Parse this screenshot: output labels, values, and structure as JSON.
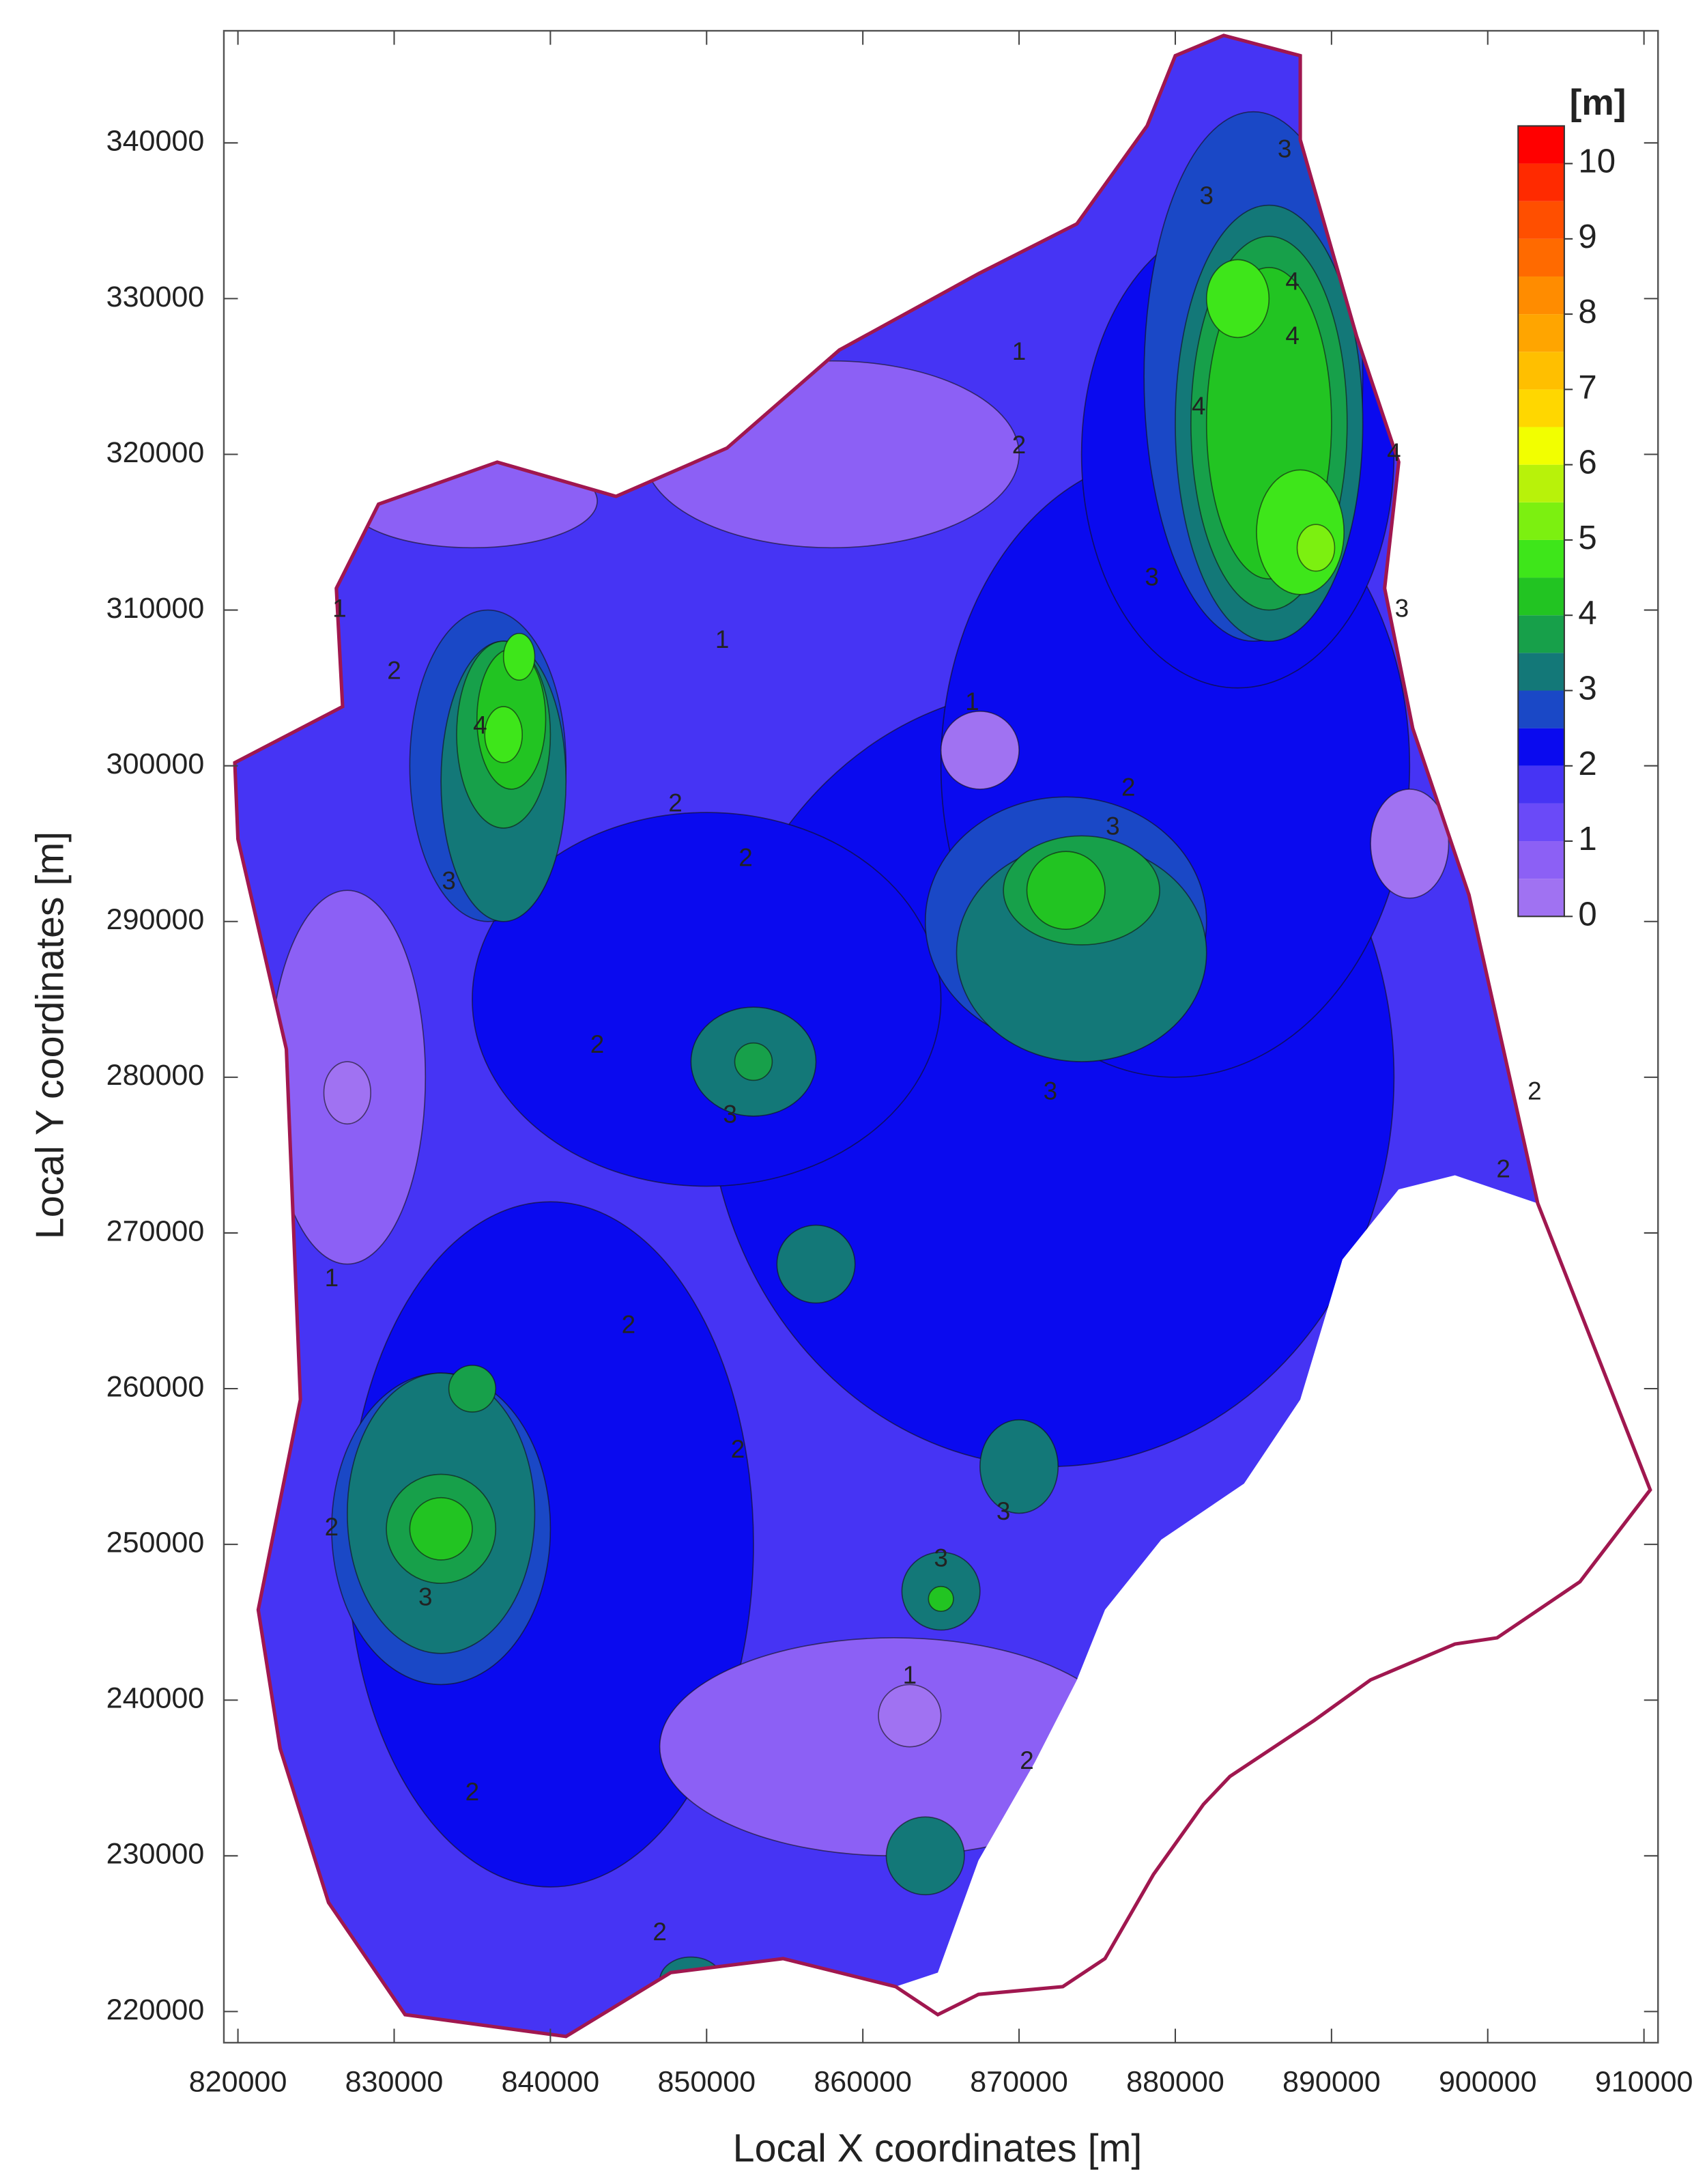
{
  "chart_data": {
    "type": "contour",
    "x_label": "Local X coordinates [m]",
    "y_label": "Local Y coordinates [m]",
    "xlim": [
      819100,
      910900
    ],
    "ylim": [
      218000,
      347200
    ],
    "xticks": [
      820000,
      830000,
      840000,
      850000,
      860000,
      870000,
      880000,
      890000,
      900000,
      910000
    ],
    "yticks": [
      220000,
      230000,
      240000,
      250000,
      260000,
      270000,
      280000,
      290000,
      300000,
      310000,
      320000,
      330000,
      340000
    ],
    "base_level": 1.5,
    "area": [
      [
        819800,
        300200
      ],
      [
        826700,
        303800
      ],
      [
        826300,
        311400
      ],
      [
        829000,
        316800
      ],
      [
        836600,
        319500
      ],
      [
        844200,
        317300
      ],
      [
        851300,
        320400
      ],
      [
        858500,
        326700
      ],
      [
        867400,
        331600
      ],
      [
        873700,
        334800
      ],
      [
        878200,
        341100
      ],
      [
        880000,
        345600
      ],
      [
        883100,
        346900
      ],
      [
        888000,
        345600
      ],
      [
        888000,
        340200
      ],
      [
        891600,
        327600
      ],
      [
        894300,
        319500
      ],
      [
        893400,
        311400
      ],
      [
        895200,
        302400
      ],
      [
        898800,
        291700
      ],
      [
        903200,
        271900
      ],
      [
        897900,
        273700
      ],
      [
        894300,
        272800
      ],
      [
        890700,
        268300
      ],
      [
        888000,
        259300
      ],
      [
        884400,
        253900
      ],
      [
        879100,
        250300
      ],
      [
        875500,
        245800
      ],
      [
        873700,
        241300
      ],
      [
        871000,
        236000
      ],
      [
        867400,
        229700
      ],
      [
        864800,
        222500
      ],
      [
        862100,
        221600
      ],
      [
        854900,
        223400
      ],
      [
        847700,
        222500
      ],
      [
        841000,
        218400
      ],
      [
        830700,
        219800
      ],
      [
        825800,
        227000
      ],
      [
        822700,
        236900
      ],
      [
        821300,
        245800
      ],
      [
        824000,
        259300
      ],
      [
        823100,
        281800
      ],
      [
        820000,
        295300
      ]
    ],
    "outline": [
      [
        819800,
        300200
      ],
      [
        826700,
        303800
      ],
      [
        826300,
        311400
      ],
      [
        829000,
        316800
      ],
      [
        836600,
        319500
      ],
      [
        844200,
        317300
      ],
      [
        851300,
        320400
      ],
      [
        858500,
        326700
      ],
      [
        867400,
        331600
      ],
      [
        873700,
        334800
      ],
      [
        878200,
        341100
      ],
      [
        880000,
        345600
      ],
      [
        883100,
        346900
      ],
      [
        888000,
        345600
      ],
      [
        888000,
        340200
      ],
      [
        891600,
        327600
      ],
      [
        894300,
        319500
      ],
      [
        893400,
        311400
      ],
      [
        895200,
        302400
      ],
      [
        898800,
        291700
      ],
      [
        903200,
        271900
      ],
      [
        910400,
        253500
      ],
      [
        905900,
        247600
      ],
      [
        900600,
        244000
      ],
      [
        897900,
        243600
      ],
      [
        892500,
        241300
      ],
      [
        888900,
        238700
      ],
      [
        883500,
        235100
      ],
      [
        881800,
        233300
      ],
      [
        878600,
        228800
      ],
      [
        875500,
        223400
      ],
      [
        872800,
        221600
      ],
      [
        867400,
        221100
      ],
      [
        864800,
        219800
      ],
      [
        862100,
        221600
      ],
      [
        854900,
        223400
      ],
      [
        847700,
        222500
      ],
      [
        841000,
        218400
      ],
      [
        830700,
        219800
      ],
      [
        825800,
        227000
      ],
      [
        822700,
        236900
      ],
      [
        821300,
        245800
      ],
      [
        824000,
        259300
      ],
      [
        823100,
        281800
      ],
      [
        820000,
        295300
      ]
    ],
    "outline_color": "#a0174f",
    "regions": [
      {
        "level": 2.25,
        "x": 872000,
        "y": 280000,
        "rx": 22000,
        "ry": 25000
      },
      {
        "level": 2.25,
        "x": 850000,
        "y": 285000,
        "rx": 15000,
        "ry": 12000
      },
      {
        "level": 2.25,
        "x": 840000,
        "y": 250000,
        "rx": 13000,
        "ry": 22000
      },
      {
        "level": 2.25,
        "x": 880000,
        "y": 300000,
        "rx": 15000,
        "ry": 20000
      },
      {
        "level": 2.25,
        "x": 884000,
        "y": 320000,
        "rx": 10000,
        "ry": 15000
      },
      {
        "level": 0.75,
        "x": 827000,
        "y": 280000,
        "rx": 5000,
        "ry": 12000
      },
      {
        "level": 0.75,
        "x": 835000,
        "y": 317000,
        "rx": 8000,
        "ry": 3000
      },
      {
        "level": 0.75,
        "x": 862000,
        "y": 237000,
        "rx": 15000,
        "ry": 7000
      },
      {
        "level": 0.75,
        "x": 858000,
        "y": 320000,
        "rx": 12000,
        "ry": 6000
      },
      {
        "level": 0.25,
        "x": 863000,
        "y": 239000,
        "rx": 2000,
        "ry": 2000
      },
      {
        "level": 0.25,
        "x": 867500,
        "y": 301000,
        "rx": 2500,
        "ry": 2500
      },
      {
        "level": 0.25,
        "x": 827000,
        "y": 279000,
        "rx": 1500,
        "ry": 2000
      },
      {
        "level": 0.25,
        "x": 895000,
        "y": 295000,
        "rx": 2500,
        "ry": 3500
      },
      {
        "level": 2.75,
        "x": 885000,
        "y": 325000,
        "rx": 7000,
        "ry": 17000
      },
      {
        "level": 2.75,
        "x": 873000,
        "y": 290000,
        "rx": 9000,
        "ry": 8000
      },
      {
        "level": 2.75,
        "x": 836000,
        "y": 300000,
        "rx": 5000,
        "ry": 10000
      },
      {
        "level": 2.75,
        "x": 833000,
        "y": 251000,
        "rx": 7000,
        "ry": 10000
      },
      {
        "level": 3.25,
        "x": 886000,
        "y": 322000,
        "rx": 6000,
        "ry": 14000
      },
      {
        "level": 3.25,
        "x": 874000,
        "y": 288000,
        "rx": 8000,
        "ry": 7000
      },
      {
        "level": 3.25,
        "x": 837000,
        "y": 299000,
        "rx": 4000,
        "ry": 9000
      },
      {
        "level": 3.25,
        "x": 833000,
        "y": 252000,
        "rx": 6000,
        "ry": 9000
      },
      {
        "level": 3.25,
        "x": 853000,
        "y": 281000,
        "rx": 4000,
        "ry": 3500
      },
      {
        "level": 3.25,
        "x": 857000,
        "y": 268000,
        "rx": 2500,
        "ry": 2500
      },
      {
        "level": 3.25,
        "x": 870000,
        "y": 255000,
        "rx": 2500,
        "ry": 3000
      },
      {
        "level": 3.25,
        "x": 865000,
        "y": 247000,
        "rx": 2500,
        "ry": 2500
      },
      {
        "level": 3.25,
        "x": 864000,
        "y": 230000,
        "rx": 2500,
        "ry": 2500
      },
      {
        "level": 3.25,
        "x": 849000,
        "y": 222000,
        "rx": 2000,
        "ry": 1500
      },
      {
        "level": 3.75,
        "x": 886000,
        "y": 322000,
        "rx": 5000,
        "ry": 12000
      },
      {
        "level": 3.75,
        "x": 874000,
        "y": 292000,
        "rx": 5000,
        "ry": 3500
      },
      {
        "level": 3.75,
        "x": 837000,
        "y": 302000,
        "rx": 3000,
        "ry": 6000
      },
      {
        "level": 3.75,
        "x": 833000,
        "y": 251000,
        "rx": 3500,
        "ry": 3500
      },
      {
        "level": 3.75,
        "x": 835000,
        "y": 260000,
        "rx": 1500,
        "ry": 1500
      },
      {
        "level": 3.75,
        "x": 853000,
        "y": 281000,
        "rx": 1200,
        "ry": 1200
      },
      {
        "level": 4.25,
        "x": 886000,
        "y": 322000,
        "rx": 4000,
        "ry": 10000
      },
      {
        "level": 4.25,
        "x": 873000,
        "y": 292000,
        "rx": 2500,
        "ry": 2500
      },
      {
        "level": 4.25,
        "x": 837500,
        "y": 303000,
        "rx": 2200,
        "ry": 4500
      },
      {
        "level": 4.25,
        "x": 833000,
        "y": 251000,
        "rx": 2000,
        "ry": 2000
      },
      {
        "level": 4.25,
        "x": 865000,
        "y": 246500,
        "rx": 800,
        "ry": 800
      },
      {
        "level": 4.75,
        "x": 888000,
        "y": 315000,
        "rx": 2800,
        "ry": 4000
      },
      {
        "level": 4.75,
        "x": 884000,
        "y": 330000,
        "rx": 2000,
        "ry": 2500
      },
      {
        "level": 4.75,
        "x": 837000,
        "y": 302000,
        "rx": 1200,
        "ry": 1800
      },
      {
        "level": 4.75,
        "x": 838000,
        "y": 307000,
        "rx": 1000,
        "ry": 1500
      },
      {
        "level": 5.25,
        "x": 889000,
        "y": 314000,
        "rx": 1200,
        "ry": 1500
      }
    ],
    "contour_labels": [
      {
        "value": 1,
        "x": 870000,
        "y": 326500
      },
      {
        "value": 1,
        "x": 826500,
        "y": 310000
      },
      {
        "value": 1,
        "x": 851000,
        "y": 308000
      },
      {
        "value": 1,
        "x": 867000,
        "y": 304000
      },
      {
        "value": 1,
        "x": 826000,
        "y": 267000
      },
      {
        "value": 1,
        "x": 863000,
        "y": 241500
      },
      {
        "value": 2,
        "x": 870000,
        "y": 320500
      },
      {
        "value": 2,
        "x": 830000,
        "y": 306000
      },
      {
        "value": 2,
        "x": 848000,
        "y": 297500
      },
      {
        "value": 2,
        "x": 852500,
        "y": 294000
      },
      {
        "value": 2,
        "x": 877000,
        "y": 298500
      },
      {
        "value": 2,
        "x": 843000,
        "y": 282000
      },
      {
        "value": 2,
        "x": 903000,
        "y": 279000
      },
      {
        "value": 2,
        "x": 901000,
        "y": 274000
      },
      {
        "value": 2,
        "x": 845000,
        "y": 264000
      },
      {
        "value": 2,
        "x": 852000,
        "y": 256000
      },
      {
        "value": 2,
        "x": 826000,
        "y": 251000
      },
      {
        "value": 2,
        "x": 870500,
        "y": 236000
      },
      {
        "value": 2,
        "x": 835000,
        "y": 234000
      },
      {
        "value": 2,
        "x": 847000,
        "y": 225000
      },
      {
        "value": 3,
        "x": 887000,
        "y": 339500
      },
      {
        "value": 3,
        "x": 882000,
        "y": 336500
      },
      {
        "value": 3,
        "x": 878500,
        "y": 312000
      },
      {
        "value": 3,
        "x": 894500,
        "y": 310000
      },
      {
        "value": 3,
        "x": 876000,
        "y": 296000
      },
      {
        "value": 3,
        "x": 833500,
        "y": 292500
      },
      {
        "value": 3,
        "x": 872000,
        "y": 279000
      },
      {
        "value": 3,
        "x": 851500,
        "y": 277500
      },
      {
        "value": 3,
        "x": 869000,
        "y": 252000
      },
      {
        "value": 3,
        "x": 865000,
        "y": 249000
      },
      {
        "value": 3,
        "x": 832000,
        "y": 246500
      },
      {
        "value": 4,
        "x": 887500,
        "y": 331000
      },
      {
        "value": 4,
        "x": 887500,
        "y": 327500
      },
      {
        "value": 4,
        "x": 881500,
        "y": 323000
      },
      {
        "value": 4,
        "x": 894000,
        "y": 320000
      },
      {
        "value": 4,
        "x": 835500,
        "y": 302500
      }
    ],
    "colorbar": {
      "label": "[m]",
      "ticks": [
        0,
        1,
        2,
        3,
        4,
        5,
        6,
        7,
        8,
        9,
        10
      ],
      "levels": [
        0,
        0.5,
        1,
        1.5,
        2,
        2.5,
        3,
        3.5,
        4,
        4.5,
        5,
        5.5,
        6,
        6.5,
        7,
        7.5,
        8,
        8.5,
        9,
        9.5,
        10,
        10.5
      ],
      "colors": [
        "#a072f2",
        "#8c60f5",
        "#6a4af8",
        "#4634f4",
        "#0a0aef",
        "#1a48c6",
        "#137878",
        "#17a04a",
        "#22c422",
        "#3ee61a",
        "#7cf010",
        "#b8f20a",
        "#f2ff00",
        "#ffd700",
        "#ffbf00",
        "#ffa500",
        "#ff8c00",
        "#ff6a00",
        "#ff4f00",
        "#ff2a00",
        "#ff0000"
      ]
    }
  }
}
